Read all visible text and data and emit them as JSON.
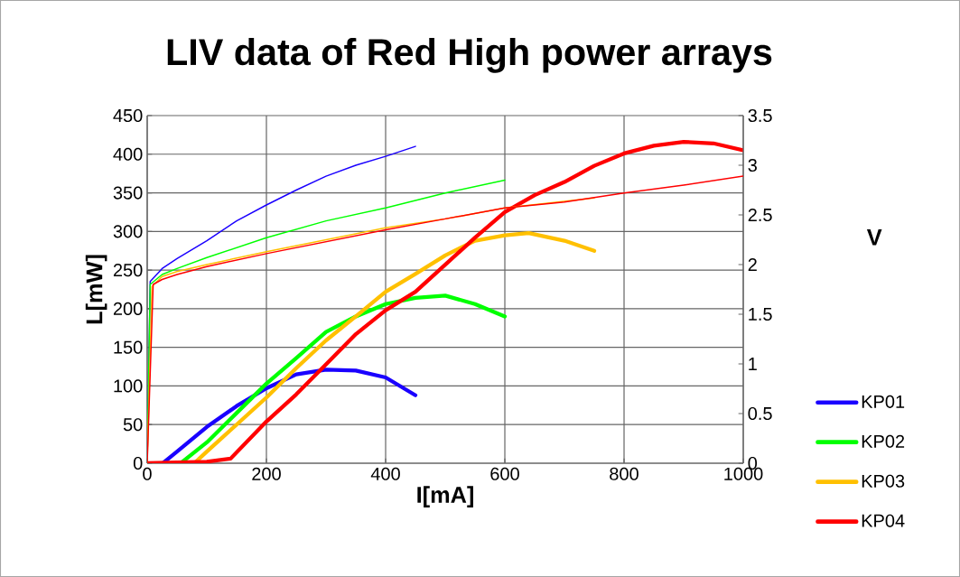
{
  "chart_data": {
    "type": "line",
    "title": "LIV data of Red High power arrays",
    "xlabel": "I[mA]",
    "ylabel": "L[mW]",
    "y2label": "V",
    "xlim": [
      0,
      1000
    ],
    "xticks": [
      0,
      200,
      400,
      600,
      800,
      1000
    ],
    "ylim": [
      0,
      450
    ],
    "yticks": [
      0,
      50,
      100,
      150,
      200,
      250,
      300,
      350,
      400,
      450
    ],
    "y2lim": [
      0,
      3.5
    ],
    "y2ticks": [
      0,
      0.5,
      1,
      1.5,
      2,
      2.5,
      3,
      3.5
    ],
    "grid": true,
    "legend": "right",
    "marker": "none",
    "line_style": "solid",
    "series": [
      {
        "name": "KP01",
        "color": "#1a00ff",
        "x": [
          26,
          50,
          100,
          150,
          200,
          250,
          300,
          350,
          400,
          450
        ],
        "values": [
          0,
          15,
          47,
          74,
          97,
          115,
          121,
          120,
          111,
          88
        ]
      },
      {
        "name": "KP02",
        "color": "#00ff00",
        "x": [
          56,
          100,
          150,
          200,
          250,
          300,
          350,
          400,
          450,
          500,
          550,
          600
        ],
        "values": [
          0,
          27,
          65,
          103,
          136,
          170,
          190,
          206,
          214,
          217,
          206,
          190
        ]
      },
      {
        "name": "KP03",
        "color": "#ffc000",
        "x": [
          79,
          100,
          150,
          200,
          250,
          300,
          350,
          400,
          450,
          500,
          550,
          600,
          640,
          700,
          750
        ],
        "values": [
          0,
          15,
          50,
          85,
          123,
          159,
          190,
          222,
          245,
          269,
          288,
          295,
          298,
          288,
          275
        ]
      },
      {
        "name": "KP04",
        "color": "#ff0000",
        "x": [
          0,
          100,
          140,
          200,
          250,
          300,
          350,
          400,
          450,
          500,
          550,
          600,
          650,
          700,
          750,
          800,
          850,
          900,
          950,
          1000
        ],
        "values": [
          0,
          2,
          6,
          54,
          89,
          128,
          167,
          198,
          222,
          257,
          292,
          325,
          347,
          364,
          385,
          401,
          411,
          416,
          414,
          405
        ]
      },
      {
        "color": "#1a00ff",
        "axis": "y2",
        "x": [
          0,
          5,
          25,
          50,
          100,
          150,
          200,
          250,
          300,
          350,
          400,
          450
        ],
        "values": [
          0,
          1.83,
          1.96,
          2.06,
          2.24,
          2.44,
          2.6,
          2.75,
          2.89,
          3.0,
          3.09,
          3.19
        ]
      },
      {
        "color": "#00ff00",
        "axis": "y2",
        "x": [
          0,
          5,
          25,
          50,
          100,
          200,
          300,
          400,
          500,
          600
        ],
        "values": [
          0,
          1.8,
          1.9,
          1.96,
          2.07,
          2.27,
          2.44,
          2.57,
          2.72,
          2.85
        ]
      },
      {
        "color": "#ffc000",
        "axis": "y2",
        "x": [
          0,
          8,
          25,
          50,
          100,
          200,
          300,
          400,
          500,
          600,
          750
        ],
        "values": [
          0,
          1.78,
          1.88,
          1.93,
          2.0,
          2.13,
          2.25,
          2.37,
          2.46,
          2.57,
          2.67
        ]
      },
      {
        "color": "#ff0000",
        "axis": "y2",
        "x": [
          0,
          10,
          25,
          50,
          100,
          200,
          300,
          400,
          500,
          600,
          700,
          800,
          900,
          1000
        ],
        "values": [
          0,
          1.8,
          1.85,
          1.9,
          1.98,
          2.11,
          2.23,
          2.35,
          2.46,
          2.57,
          2.63,
          2.72,
          2.8,
          2.89
        ]
      }
    ]
  }
}
